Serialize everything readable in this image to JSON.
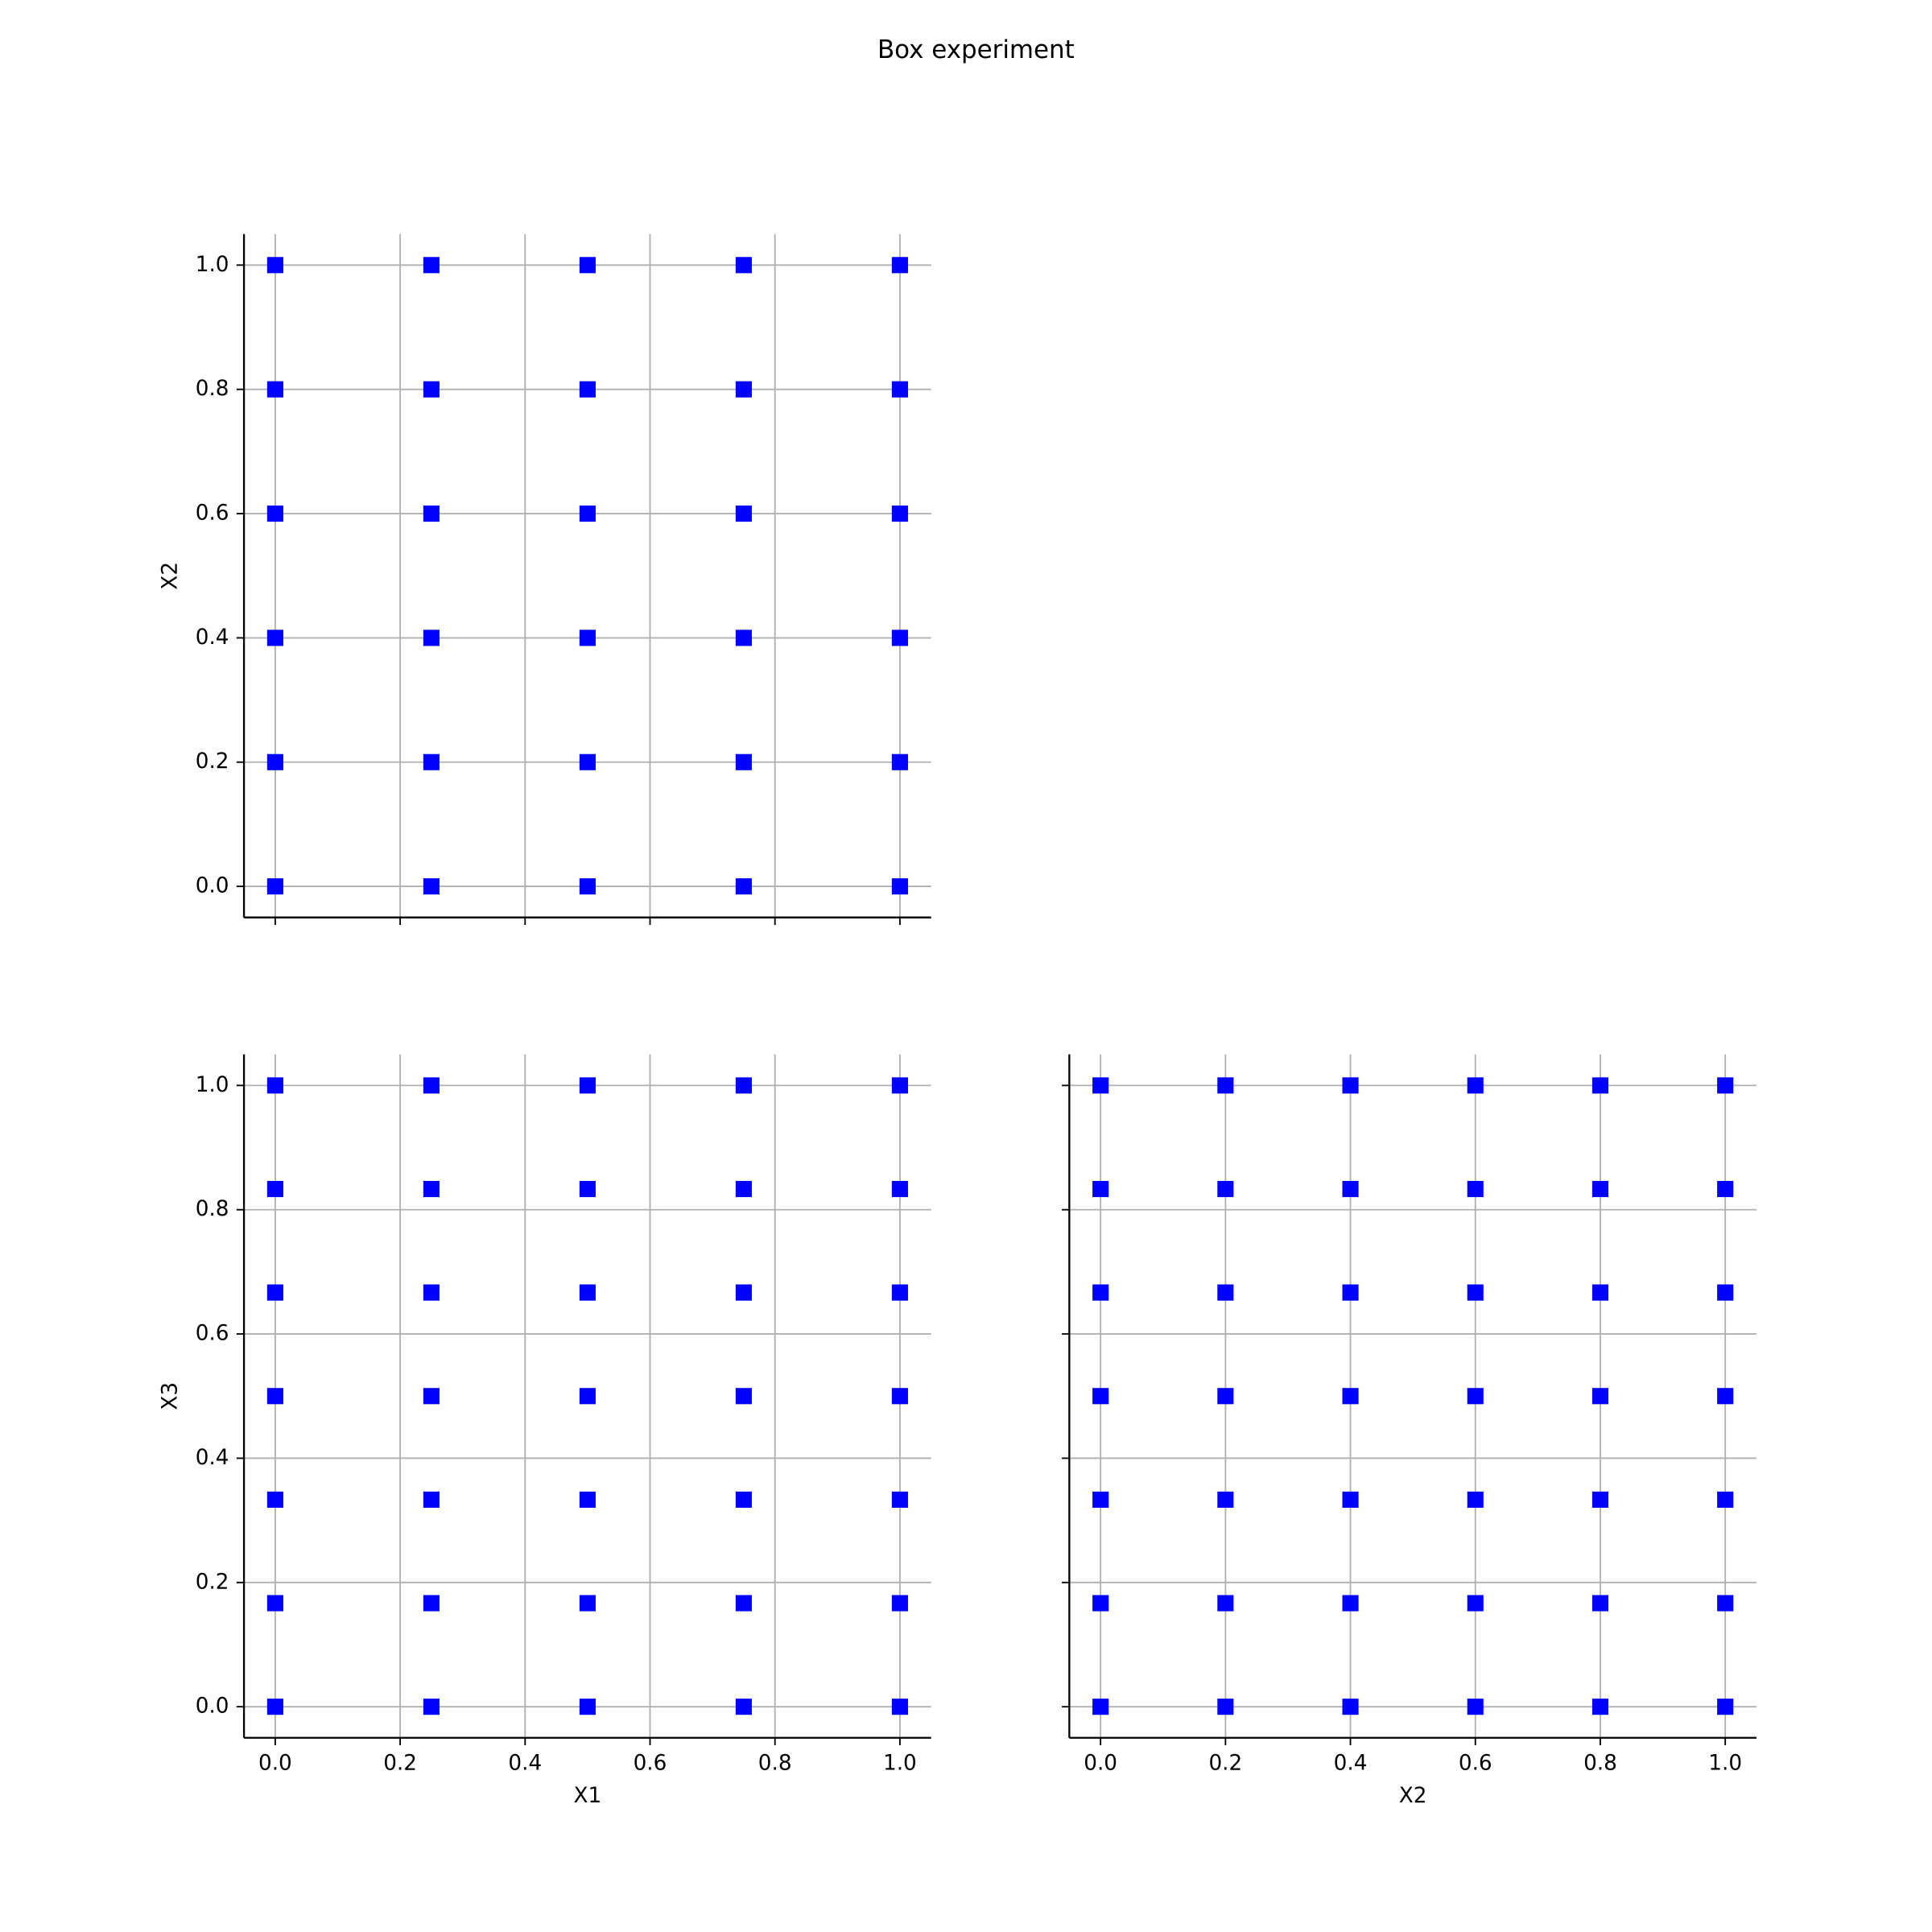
{
  "title": "Box experiment",
  "chart_data": [
    {
      "type": "scatter",
      "color": "#0000ff",
      "marker": "square",
      "grid": true,
      "ylabel": "X2",
      "x": [
        0,
        0,
        0,
        0,
        0,
        0,
        0.25,
        0.25,
        0.25,
        0.25,
        0.25,
        0.25,
        0.5,
        0.5,
        0.5,
        0.5,
        0.5,
        0.5,
        0.75,
        0.75,
        0.75,
        0.75,
        0.75,
        0.75,
        1,
        1,
        1,
        1,
        1,
        1
      ],
      "y": [
        0,
        0.2,
        0.4,
        0.6,
        0.8,
        1,
        0,
        0.2,
        0.4,
        0.6,
        0.8,
        1,
        0,
        0.2,
        0.4,
        0.6,
        0.8,
        1,
        0,
        0.2,
        0.4,
        0.6,
        0.8,
        1,
        0,
        0.2,
        0.4,
        0.6,
        0.8,
        1
      ],
      "xlim": [
        -0.05,
        1.05
      ],
      "ylim": [
        -0.05,
        1.05
      ],
      "xticks": [
        0,
        0.2,
        0.4,
        0.6,
        0.8,
        1
      ],
      "yticks": [
        {
          "value": 0,
          "label": "0.0"
        },
        0.2,
        0.4,
        0.6,
        0.8,
        {
          "value": 1,
          "label": "1.0"
        }
      ]
    },
    {
      "type": "scatter",
      "color": "#0000ff",
      "marker": "square",
      "grid": true,
      "xlabel": "X1",
      "ylabel": "X3",
      "x": [
        0,
        0,
        0,
        0,
        0,
        0,
        0,
        0.25,
        0.25,
        0.25,
        0.25,
        0.25,
        0.25,
        0.25,
        0.5,
        0.5,
        0.5,
        0.5,
        0.5,
        0.5,
        0.5,
        0.75,
        0.75,
        0.75,
        0.75,
        0.75,
        0.75,
        0.75,
        1,
        1,
        1,
        1,
        1,
        1,
        1
      ],
      "y": [
        0,
        0.1667,
        0.3333,
        0.5,
        0.6667,
        0.8333,
        1,
        0,
        0.1667,
        0.3333,
        0.5,
        0.6667,
        0.8333,
        1,
        0,
        0.1667,
        0.3333,
        0.5,
        0.6667,
        0.8333,
        1,
        0,
        0.1667,
        0.3333,
        0.5,
        0.6667,
        0.8333,
        1,
        0,
        0.1667,
        0.3333,
        0.5,
        0.6667,
        0.8333,
        1
      ],
      "xlim": [
        -0.05,
        1.05
      ],
      "ylim": [
        -0.05,
        1.05
      ],
      "xticks": [
        {
          "value": 0,
          "label": "0.0"
        },
        0.2,
        0.4,
        0.6,
        0.8,
        {
          "value": 1,
          "label": "1.0"
        }
      ],
      "yticks": [
        {
          "value": 0,
          "label": "0.0"
        },
        0.2,
        0.4,
        0.6,
        0.8,
        {
          "value": 1,
          "label": "1.0"
        }
      ]
    },
    {
      "type": "scatter",
      "color": "#0000ff",
      "marker": "square",
      "grid": true,
      "xlabel": "X2",
      "x": [
        0,
        0,
        0,
        0,
        0,
        0,
        0,
        0.2,
        0.2,
        0.2,
        0.2,
        0.2,
        0.2,
        0.2,
        0.4,
        0.4,
        0.4,
        0.4,
        0.4,
        0.4,
        0.4,
        0.6,
        0.6,
        0.6,
        0.6,
        0.6,
        0.6,
        0.6,
        0.8,
        0.8,
        0.8,
        0.8,
        0.8,
        0.8,
        0.8,
        1,
        1,
        1,
        1,
        1,
        1,
        1
      ],
      "y": [
        0,
        0.1667,
        0.3333,
        0.5,
        0.6667,
        0.8333,
        1,
        0,
        0.1667,
        0.3333,
        0.5,
        0.6667,
        0.8333,
        1,
        0,
        0.1667,
        0.3333,
        0.5,
        0.6667,
        0.8333,
        1,
        0,
        0.1667,
        0.3333,
        0.5,
        0.6667,
        0.8333,
        1,
        0,
        0.1667,
        0.3333,
        0.5,
        0.6667,
        0.8333,
        1,
        0,
        0.1667,
        0.3333,
        0.5,
        0.6667,
        0.8333,
        1
      ],
      "xlim": [
        -0.05,
        1.05
      ],
      "ylim": [
        -0.05,
        1.05
      ],
      "xticks": [
        {
          "value": 0,
          "label": "0.0"
        },
        0.2,
        0.4,
        0.6,
        0.8,
        {
          "value": 1,
          "label": "1.0"
        }
      ],
      "yticks": [
        0,
        0.2,
        0.4,
        0.6,
        0.8,
        1
      ]
    }
  ]
}
